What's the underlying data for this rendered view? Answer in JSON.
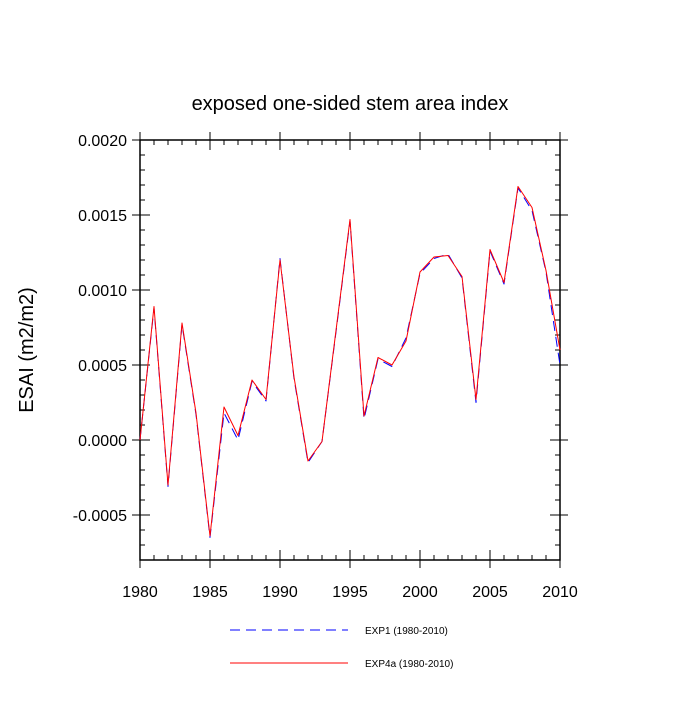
{
  "chart_data": {
    "type": "line",
    "title": "exposed one-sided stem area index",
    "xlabel": "",
    "ylabel": "ESAI  (m2/m2)",
    "xlim": [
      1980,
      2010
    ],
    "ylim": [
      -0.0008,
      0.002
    ],
    "x_ticks": [
      1980,
      1985,
      1990,
      1995,
      2000,
      2005,
      2010
    ],
    "x_tick_labels": [
      "1980",
      "1985",
      "1990",
      "1995",
      "2000",
      "2005",
      "2010"
    ],
    "y_ticks": [
      -0.0005,
      0.0,
      0.0005,
      0.001,
      0.0015,
      0.002
    ],
    "y_tick_labels": [
      "-0.0005",
      "0.0000",
      "0.0005",
      "0.0010",
      "0.0015",
      "0.0020"
    ],
    "grid": false,
    "legend_position": "bottom-center",
    "x": [
      1980,
      1981,
      1982,
      1983,
      1984,
      1985,
      1986,
      1987,
      1988,
      1989,
      1990,
      1991,
      1992,
      1993,
      1994,
      1995,
      1996,
      1997,
      1998,
      1999,
      2000,
      2001,
      2002,
      2003,
      2004,
      2005,
      2006,
      2007,
      2008,
      2009,
      2010
    ],
    "series": [
      {
        "name": "EXP1 (1980-2010)",
        "color": "#0000ff",
        "dash": "dashed",
        "values": [
          0.0,
          0.00088,
          -0.00031,
          0.00077,
          0.00017,
          -0.00065,
          0.00018,
          0.0,
          0.00039,
          0.00026,
          0.00121,
          0.00041,
          -0.00015,
          -1e-05,
          0.00072,
          0.00146,
          0.00014,
          0.00054,
          0.00049,
          0.00068,
          0.00111,
          0.00121,
          0.00124,
          0.00108,
          0.00025,
          0.00126,
          0.00104,
          0.00168,
          0.00153,
          0.00112,
          0.0005
        ]
      },
      {
        "name": "EXP4a (1980-2010)",
        "color": "#ff0000",
        "dash": "solid",
        "values": [
          0.0,
          0.00089,
          -0.0003,
          0.00078,
          0.00018,
          -0.00064,
          0.00022,
          3e-05,
          0.0004,
          0.00027,
          0.0012,
          0.00042,
          -0.00014,
          -1e-05,
          0.00073,
          0.00147,
          0.00016,
          0.00055,
          0.0005,
          0.00066,
          0.00112,
          0.00122,
          0.00123,
          0.00109,
          0.00027,
          0.00127,
          0.00105,
          0.00169,
          0.00155,
          0.00113,
          0.0006
        ]
      }
    ]
  }
}
